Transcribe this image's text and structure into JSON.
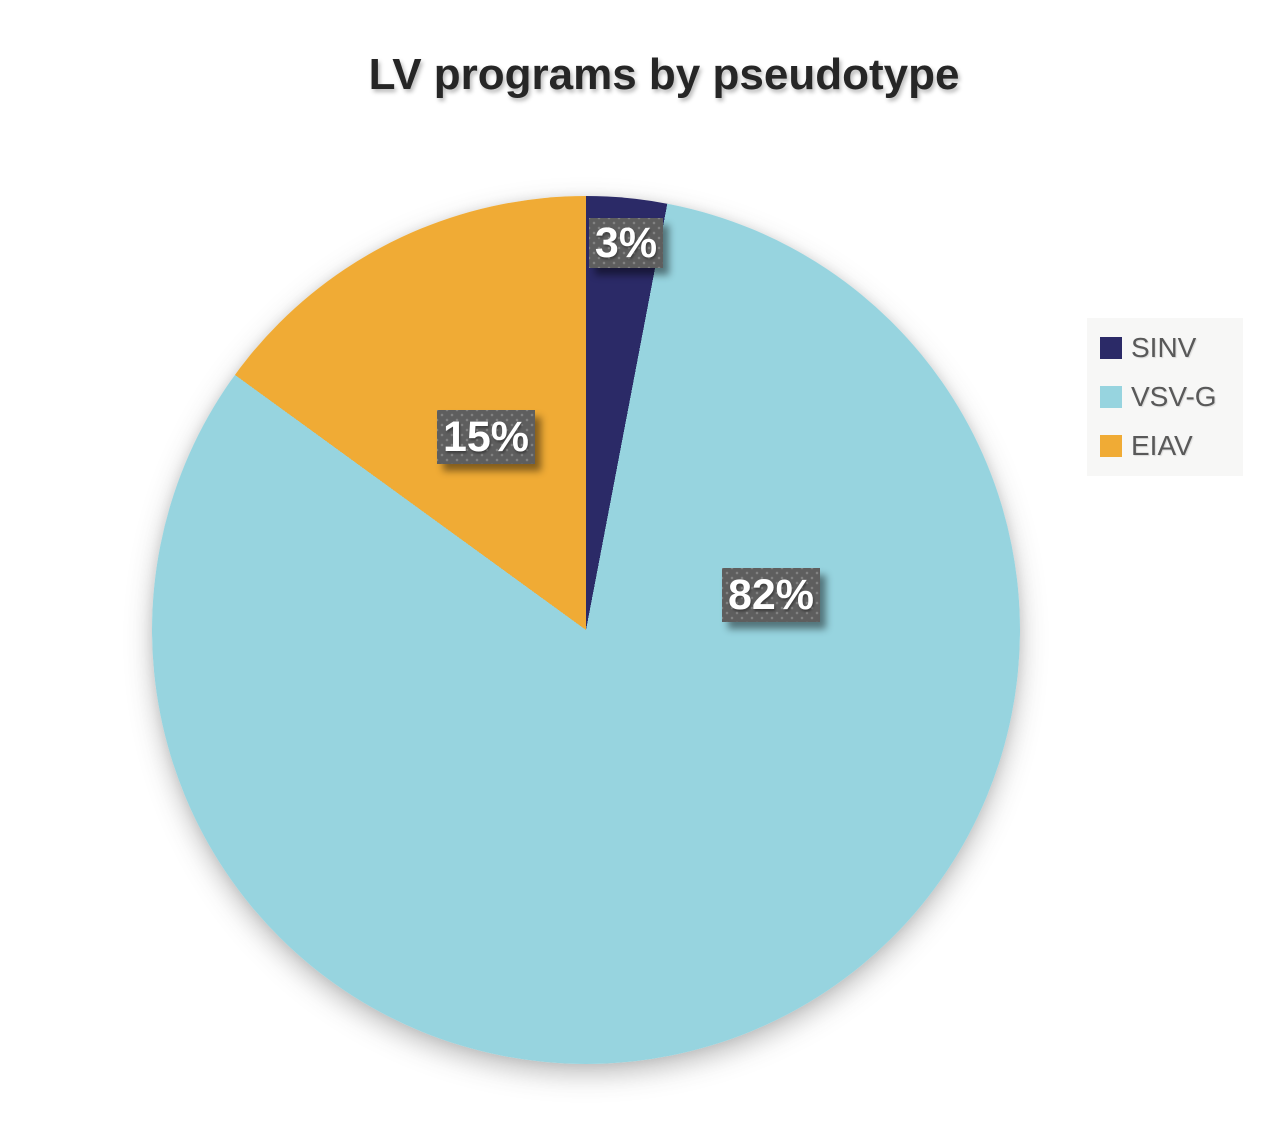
{
  "chart_data": {
    "type": "pie",
    "title": "LV programs by pseudotype",
    "start_angle_deg": 0,
    "direction": "clockwise",
    "legend_position": "right",
    "grid": false,
    "slices": [
      {
        "name": "SINV",
        "value": 3,
        "label": "3%",
        "color": "#2b2a67"
      },
      {
        "name": "VSV-G",
        "value": 82,
        "label": "82%",
        "color": "#97d4df"
      },
      {
        "name": "EIAV",
        "value": 15,
        "label": "15%",
        "color": "#f0ab35"
      }
    ],
    "data_label_style": {
      "background": "#5e5e5e",
      "text_color": "#ffffff",
      "pattern": "dotted"
    },
    "colors": {
      "title_text": "#262626",
      "legend_text": "#595959",
      "legend_background": "#f7f7f6",
      "page_background": "#ffffff"
    }
  }
}
